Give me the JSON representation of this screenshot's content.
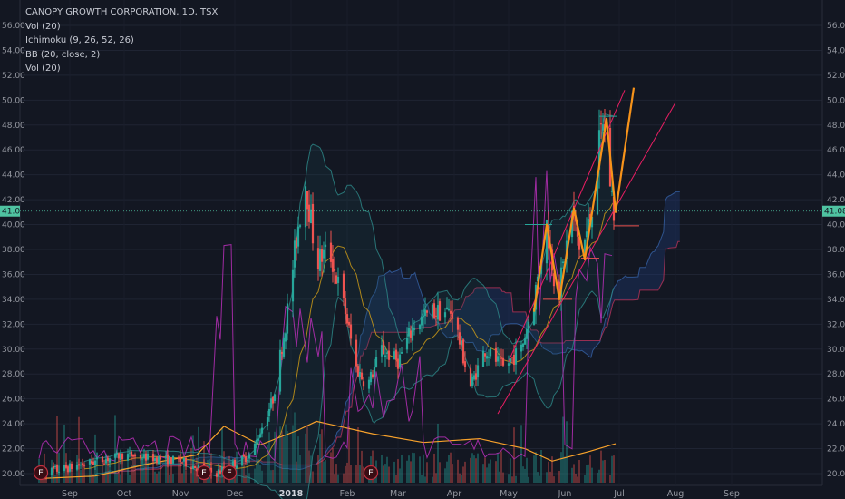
{
  "legend": {
    "title": "CANOPY GROWTH CORPORATION, 1D, TSX",
    "line2": "Vol (20)",
    "line3": "Ichimoku (9, 26, 52, 26)",
    "line4": "BB (20, close, 2)",
    "line5": "Vol (20)"
  },
  "colors": {
    "background": "#131722",
    "up": "#26a69a",
    "down": "#ef5350",
    "price_line": "#4fc3a1",
    "zigzag": "#f7931a",
    "channel": "#e91e63",
    "volume_ma": "#f7a12b",
    "magenta": "#b82fb8"
  },
  "chart_data": {
    "type": "candlestick",
    "title": "CANOPY GROWTH CORPORATION, 1D, TSX",
    "y_axis": {
      "ticks": [
        "56.00",
        "54.00",
        "52.00",
        "50.00",
        "48.00",
        "46.00",
        "44.00",
        "42.00",
        "40.00",
        "38.00",
        "36.00",
        "34.00",
        "32.00",
        "30.00",
        "28.00",
        "26.00",
        "24.00",
        "22.00",
        "20.00"
      ],
      "ylim": [
        19.5,
        56.9
      ]
    },
    "last_price": "41.08",
    "x_axis": {
      "labels": [
        "Sep",
        "Oct",
        "Nov",
        "Dec",
        "2018",
        "Feb",
        "Mar",
        "Apr",
        "May",
        "Jun",
        "Jul",
        "Aug",
        "Sep"
      ]
    },
    "events": [
      "E",
      "E",
      "E",
      "E"
    ],
    "price_path": [
      [
        "2017-08-15",
        20.0
      ],
      [
        "2017-09-01",
        20.5
      ],
      [
        "2017-10-01",
        21.5
      ],
      [
        "2017-11-01",
        21.0
      ],
      [
        "2017-11-20",
        20.0
      ],
      [
        "2017-12-10",
        21.5
      ],
      [
        "2017-12-22",
        26.0
      ],
      [
        "2017-12-29",
        32.0
      ],
      [
        "2018-01-05",
        40.0
      ],
      [
        "2018-01-09",
        43.5
      ],
      [
        "2018-01-15",
        37.0
      ],
      [
        "2018-01-22",
        38.0
      ],
      [
        "2018-01-31",
        33.0
      ],
      [
        "2018-02-06",
        28.5
      ],
      [
        "2018-02-12",
        27.0
      ],
      [
        "2018-02-20",
        30.0
      ],
      [
        "2018-03-01",
        29.0
      ],
      [
        "2018-03-10",
        32.0
      ],
      [
        "2018-03-20",
        33.0
      ],
      [
        "2018-03-31",
        33.0
      ],
      [
        "2018-04-05",
        30.0
      ],
      [
        "2018-04-10",
        27.0
      ],
      [
        "2018-04-18",
        30.0
      ],
      [
        "2018-04-28",
        28.5
      ],
      [
        "2018-05-08",
        30.0
      ],
      [
        "2018-05-15",
        34.0
      ],
      [
        "2018-05-22",
        40.0
      ],
      [
        "2018-05-28",
        34.0
      ],
      [
        "2018-06-05",
        41.0
      ],
      [
        "2018-06-10",
        37.5
      ],
      [
        "2018-06-15",
        40.5
      ],
      [
        "2018-06-22",
        48.5
      ],
      [
        "2018-06-28",
        41.0
      ]
    ],
    "zigzag": [
      [
        "2018-05-15",
        33.0
      ],
      [
        "2018-05-22",
        40.0
      ],
      [
        "2018-05-29",
        34.0
      ],
      [
        "2018-06-06",
        41.3
      ],
      [
        "2018-06-12",
        37.2
      ],
      [
        "2018-06-24",
        48.5
      ],
      [
        "2018-06-29",
        41.0
      ],
      [
        "2018-07-09",
        51.0
      ]
    ],
    "channel_lines": [
      [
        [
          "2018-04-25",
          24.8
        ],
        [
          "2018-08-01",
          49.8
        ]
      ],
      [
        [
          "2018-05-01",
          29.0
        ],
        [
          "2018-07-04",
          50.8
        ]
      ]
    ],
    "volume_ma": [
      [
        "2017-08-15",
        19.6
      ],
      [
        "2017-09-15",
        19.8
      ],
      [
        "2017-10-15",
        20.8
      ],
      [
        "2017-11-10",
        21.5
      ],
      [
        "2017-11-25",
        23.8
      ],
      [
        "2017-12-15",
        22.3
      ],
      [
        "2018-01-05",
        23.5
      ],
      [
        "2018-01-15",
        24.2
      ],
      [
        "2018-02-15",
        23.2
      ],
      [
        "2018-03-15",
        22.5
      ],
      [
        "2018-04-15",
        22.8
      ],
      [
        "2018-05-10",
        22.0
      ],
      [
        "2018-05-25",
        21.0
      ],
      [
        "2018-06-15",
        21.8
      ],
      [
        "2018-06-29",
        22.4
      ]
    ]
  }
}
